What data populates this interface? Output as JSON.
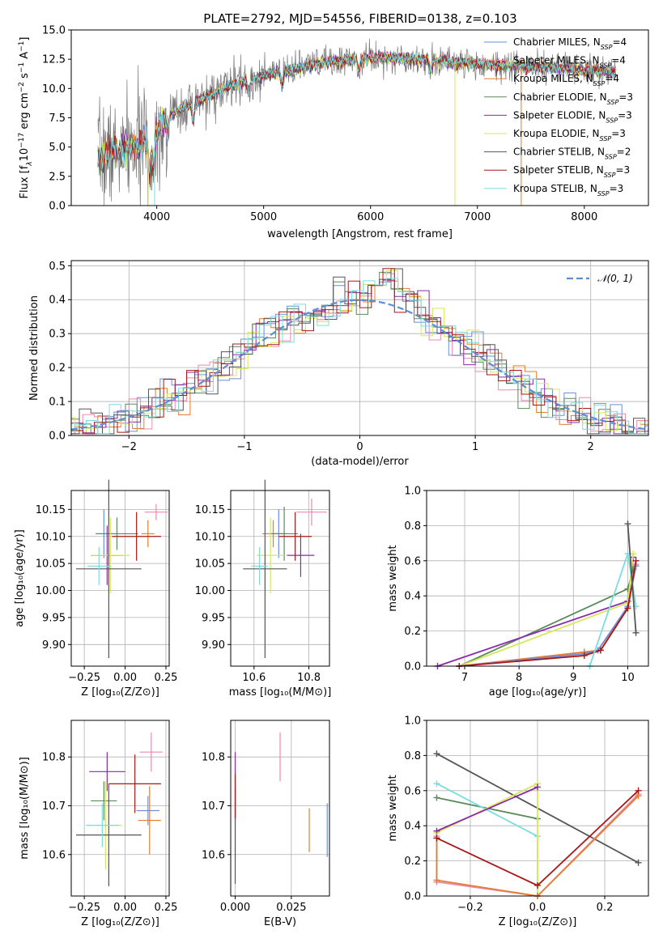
{
  "figure_title": "PLATE=2792, MJD=54556, FIBERID=0138, z=0.103",
  "colors": {
    "chabrier_miles": "#6a8fd8",
    "salpeter_miles": "#e88aaf",
    "kroupa_miles": "#e47d2e",
    "chabrier_elodie": "#5a8a5a",
    "salpeter_elodie": "#8a2aa8",
    "kroupa_elodie": "#d6e85a",
    "chabrier_stelib": "#555555",
    "salpeter_stelib": "#a81818",
    "kroupa_stelib": "#7adce0",
    "gaussian": "#5b8ed6"
  },
  "chart_data": [
    {
      "id": "spectrum",
      "type": "line",
      "xlabel": "wavelength [Angstrom, rest frame]",
      "ylabel_parts": [
        "Flux [f",
        "λ",
        "10",
        "−17",
        " erg cm",
        "−2",
        " s",
        "−1",
        " A",
        "−1",
        "]"
      ],
      "xlim": [
        3200,
        8600
      ],
      "ylim": [
        0,
        15
      ],
      "xticks": [
        4000,
        5000,
        6000,
        7000,
        8000
      ],
      "yticks": [
        0.0,
        2.5,
        5.0,
        7.5,
        10.0,
        12.5,
        15.0
      ],
      "ytick_labels": [
        "0.0",
        "2.5",
        "5.0",
        "7.5",
        "10.0",
        "12.5",
        "15.0"
      ],
      "grid": false,
      "legend_position": "upper-right",
      "data_x_range": [
        3450,
        8300
      ],
      "continuum_nodes": [
        [
          3450,
          4.2
        ],
        [
          3600,
          4.6
        ],
        [
          3800,
          5.0
        ],
        [
          3950,
          5.8
        ],
        [
          4100,
          7.6
        ],
        [
          4300,
          8.6
        ],
        [
          4500,
          9.4
        ],
        [
          4800,
          10.6
        ],
        [
          5000,
          11.1
        ],
        [
          5200,
          11.5
        ],
        [
          5500,
          12.1
        ],
        [
          5800,
          12.5
        ],
        [
          6100,
          12.7
        ],
        [
          6400,
          12.5
        ],
        [
          6700,
          12.3
        ],
        [
          7000,
          12.1
        ],
        [
          7400,
          11.9
        ],
        [
          7800,
          11.7
        ],
        [
          8300,
          11.3
        ]
      ],
      "series": [
        {
          "name": "Chabrier MILES",
          "n_ssp": 4,
          "color_key": "chabrier_miles"
        },
        {
          "name": "Salpeter MILES",
          "n_ssp": 4,
          "color_key": "salpeter_miles"
        },
        {
          "name": "Kroupa MILES",
          "n_ssp": 4,
          "color_key": "kroupa_miles"
        },
        {
          "name": "Chabrier ELODIE",
          "n_ssp": 3,
          "color_key": "chabrier_elodie"
        },
        {
          "name": "Salpeter ELODIE",
          "n_ssp": 3,
          "color_key": "salpeter_elodie"
        },
        {
          "name": "Kroupa ELODIE",
          "n_ssp": 3,
          "color_key": "kroupa_elodie"
        },
        {
          "name": "Chabrier STELIB",
          "n_ssp": 2,
          "color_key": "chabrier_stelib"
        },
        {
          "name": "Salpeter STELIB",
          "n_ssp": 3,
          "color_key": "salpeter_stelib"
        },
        {
          "name": "Kroupa STELIB",
          "n_ssp": 3,
          "color_key": "kroupa_stelib"
        }
      ],
      "drops_to_zero": [
        {
          "x": 3920,
          "color_key": "kroupa_elodie"
        },
        {
          "x": 6790,
          "color_key": "kroupa_elodie"
        },
        {
          "x": 7410,
          "color_key": "kroupa_miles"
        },
        {
          "x": 3980,
          "color_key": "kroupa_stelib"
        }
      ]
    },
    {
      "id": "residual_hist",
      "type": "line",
      "xlabel": "(data-model)/error",
      "ylabel": "Normed distribution",
      "xlim": [
        -2.5,
        2.5
      ],
      "ylim": [
        0,
        0.515
      ],
      "xticks": [
        -2,
        -1,
        0,
        1,
        2
      ],
      "xtick_labels": [
        "−2",
        "−1",
        "0",
        "1",
        "2"
      ],
      "yticks": [
        0.0,
        0.1,
        0.2,
        0.3,
        0.4,
        0.5
      ],
      "ytick_labels": [
        "0.0",
        "0.1",
        "0.2",
        "0.3",
        "0.4",
        "0.5"
      ],
      "grid": true,
      "legend": "𝒩(0, 1)",
      "legend_position": "upper-right",
      "bin_width": 0.1,
      "histogram_series_count": 9
    },
    {
      "id": "age_vs_Z",
      "type": "scatter",
      "xlabel": "Z [log₁₀(Z/Z⊙)]",
      "ylabel": "age  [log₁₀(age/yr)]",
      "xlim": [
        -0.33,
        0.27
      ],
      "ylim": [
        9.86,
        10.185
      ],
      "xticks": [
        -0.25,
        0.0,
        0.25
      ],
      "xtick_labels": [
        "−0.25",
        "0.00",
        "0.25"
      ],
      "yticks": [
        9.9,
        9.95,
        10.0,
        10.05,
        10.1,
        10.15
      ],
      "ytick_labels": [
        "9.90",
        "9.95",
        "10.00",
        "10.05",
        "10.10",
        "10.15"
      ],
      "grid": true,
      "points": [
        {
          "x": -0.13,
          "xerr": 0.05,
          "y": 10.105,
          "yerr": 0.045,
          "color_key": "chabrier_miles"
        },
        {
          "x": 0.19,
          "xerr": 0.07,
          "y": 10.145,
          "yerr": 0.015,
          "color_key": "salpeter_miles"
        },
        {
          "x": 0.14,
          "xerr": 0.04,
          "y": 10.105,
          "yerr": 0.025,
          "color_key": "kroupa_miles"
        },
        {
          "x": -0.05,
          "xerr": 0.13,
          "y": 10.105,
          "yerr": 0.03,
          "color_key": "chabrier_elodie"
        },
        {
          "x": -0.11,
          "xerr": 0.1,
          "y": 10.065,
          "yerr": 0.055,
          "color_key": "salpeter_elodie"
        },
        {
          "x": -0.09,
          "xerr": 0.12,
          "y": 10.065,
          "yerr": 0.07,
          "color_key": "kroupa_elodie"
        },
        {
          "x": -0.1,
          "xerr": 0.2,
          "y": 10.04,
          "yerr": 0.165,
          "color_key": "chabrier_stelib"
        },
        {
          "x": 0.07,
          "xerr": 0.15,
          "y": 10.1,
          "yerr": 0.045,
          "color_key": "salpeter_stelib"
        },
        {
          "x": -0.16,
          "xerr": 0.07,
          "y": 10.045,
          "yerr": 0.035,
          "color_key": "kroupa_stelib"
        }
      ]
    },
    {
      "id": "age_vs_mass",
      "type": "scatter",
      "xlabel": "mass [log₁₀(M/M⊙)]",
      "ylabel": "",
      "xlim": [
        10.515,
        10.875
      ],
      "ylim": [
        9.86,
        10.185
      ],
      "xticks": [
        10.6,
        10.8
      ],
      "xtick_labels": [
        "10.6",
        "10.8"
      ],
      "yticks": [
        9.9,
        9.95,
        10.0,
        10.05,
        10.1,
        10.15
      ],
      "ytick_labels": [
        "9.90",
        "9.95",
        "10.00",
        "10.05",
        "10.10",
        "10.15"
      ],
      "grid": true,
      "points": [
        {
          "x": 10.69,
          "xerr": 0.03,
          "y": 10.105,
          "yerr": 0.045,
          "color_key": "chabrier_miles"
        },
        {
          "x": 10.81,
          "xerr": 0.055,
          "y": 10.145,
          "yerr": 0.025,
          "color_key": "salpeter_miles"
        },
        {
          "x": 10.67,
          "xerr": 0.04,
          "y": 10.105,
          "yerr": 0.025,
          "color_key": "kroupa_miles"
        },
        {
          "x": 10.71,
          "xerr": 0.05,
          "y": 10.105,
          "yerr": 0.05,
          "color_key": "chabrier_elodie"
        },
        {
          "x": 10.77,
          "xerr": 0.05,
          "y": 10.065,
          "yerr": 0.04,
          "color_key": "salpeter_elodie"
        },
        {
          "x": 10.66,
          "xerr": 0.05,
          "y": 10.065,
          "yerr": 0.07,
          "color_key": "kroupa_elodie"
        },
        {
          "x": 10.64,
          "xerr": 0.08,
          "y": 10.04,
          "yerr": 0.165,
          "color_key": "chabrier_stelib"
        },
        {
          "x": 10.75,
          "xerr": 0.06,
          "y": 10.1,
          "yerr": 0.045,
          "color_key": "salpeter_stelib"
        },
        {
          "x": 10.62,
          "xerr": 0.03,
          "y": 10.045,
          "yerr": 0.035,
          "color_key": "kroupa_stelib"
        }
      ]
    },
    {
      "id": "weight_vs_age",
      "type": "line",
      "xlabel": "age  [log₁₀(age/yr)]",
      "ylabel": "mass weight",
      "xlim": [
        6.3,
        10.38
      ],
      "ylim": [
        0,
        1
      ],
      "xticks": [
        7,
        8,
        9,
        10
      ],
      "xtick_labels": [
        "7",
        "8",
        "9",
        "10"
      ],
      "yticks": [
        0.0,
        0.2,
        0.4,
        0.6,
        0.8,
        1.0
      ],
      "ytick_labels": [
        "0.0",
        "0.2",
        "0.4",
        "0.6",
        "0.8",
        "1.0"
      ],
      "grid": true,
      "series": [
        {
          "color_key": "chabrier_elodie",
          "points": [
            [
              6.9,
              0.0
            ],
            [
              10.0,
              0.44
            ],
            [
              10.1,
              0.55
            ]
          ]
        },
        {
          "color_key": "salpeter_elodie",
          "points": [
            [
              6.5,
              0.0
            ],
            [
              10.0,
              0.37
            ],
            [
              10.1,
              0.62
            ]
          ]
        },
        {
          "color_key": "kroupa_elodie",
          "points": [
            [
              6.9,
              0.0
            ],
            [
              10.0,
              0.36
            ],
            [
              10.1,
              0.64
            ]
          ]
        },
        {
          "color_key": "salpeter_miles",
          "points": [
            [
              6.9,
              0.0
            ],
            [
              9.2,
              0.08
            ],
            [
              9.5,
              0.09
            ],
            [
              10.0,
              0.33
            ],
            [
              10.15,
              0.58
            ]
          ]
        },
        {
          "color_key": "kroupa_miles",
          "points": [
            [
              6.9,
              0.0
            ],
            [
              9.2,
              0.08
            ],
            [
              9.45,
              0.09
            ],
            [
              10.0,
              0.33
            ],
            [
              10.15,
              0.57
            ]
          ]
        },
        {
          "color_key": "chabrier_miles",
          "points": [
            [
              6.9,
              0.0
            ],
            [
              9.2,
              0.07
            ],
            [
              9.45,
              0.09
            ],
            [
              10.0,
              0.34
            ],
            [
              10.15,
              0.57
            ]
          ]
        },
        {
          "color_key": "salpeter_stelib",
          "points": [
            [
              6.9,
              0.0
            ],
            [
              9.2,
              0.06
            ],
            [
              9.5,
              0.09
            ],
            [
              10.0,
              0.33
            ],
            [
              10.15,
              0.6
            ]
          ]
        },
        {
          "color_key": "kroupa_stelib",
          "points": [
            [
              9.3,
              0.0
            ],
            [
              10.0,
              0.64
            ],
            [
              10.15,
              0.34
            ]
          ]
        },
        {
          "color_key": "chabrier_stelib",
          "points": [
            [
              10.0,
              0.81
            ],
            [
              10.15,
              0.19
            ]
          ]
        }
      ]
    },
    {
      "id": "mass_vs_Z",
      "type": "scatter",
      "xlabel": "Z [log₁₀(Z/Z⊙)]",
      "ylabel": "mass [log₁₀(M/M⊙)]",
      "xlim": [
        -0.33,
        0.27
      ],
      "ylim": [
        10.515,
        10.875
      ],
      "xticks": [
        -0.25,
        0.0,
        0.25
      ],
      "xtick_labels": [
        "−0.25",
        "0.00",
        "0.25"
      ],
      "yticks": [
        10.6,
        10.7,
        10.8
      ],
      "ytick_labels": [
        "10.6",
        "10.7",
        "10.8"
      ],
      "grid": true,
      "points": [
        {
          "x": 0.14,
          "xerr": 0.07,
          "y": 10.69,
          "yerr": 0.03,
          "color_key": "chabrier_miles"
        },
        {
          "x": 0.16,
          "xerr": 0.07,
          "y": 10.81,
          "yerr": 0.04,
          "color_key": "salpeter_miles"
        },
        {
          "x": 0.15,
          "xerr": 0.07,
          "y": 10.67,
          "yerr": 0.07,
          "color_key": "kroupa_miles"
        },
        {
          "x": -0.13,
          "xerr": 0.08,
          "y": 10.71,
          "yerr": 0.04,
          "color_key": "chabrier_elodie"
        },
        {
          "x": -0.11,
          "xerr": 0.11,
          "y": 10.77,
          "yerr": 0.04,
          "color_key": "salpeter_elodie"
        },
        {
          "x": -0.12,
          "xerr": 0.1,
          "y": 10.66,
          "yerr": 0.09,
          "color_key": "kroupa_elodie"
        },
        {
          "x": -0.1,
          "xerr": 0.2,
          "y": 10.64,
          "yerr": 0.105,
          "color_key": "chabrier_stelib"
        },
        {
          "x": 0.06,
          "xerr": 0.16,
          "y": 10.745,
          "yerr": 0.06,
          "color_key": "salpeter_stelib"
        },
        {
          "x": -0.14,
          "xerr": 0.1,
          "y": 10.66,
          "yerr": 0.045,
          "color_key": "kroupa_stelib"
        }
      ]
    },
    {
      "id": "mass_vs_ebv",
      "type": "scatter",
      "xlabel": "E(B-V)",
      "ylabel": "",
      "xlim": [
        -0.002,
        0.042
      ],
      "ylim": [
        10.515,
        10.875
      ],
      "xticks": [
        0.0,
        0.025
      ],
      "xtick_labels": [
        "0.000",
        "0.025"
      ],
      "yticks": [
        10.6,
        10.7,
        10.8
      ],
      "ytick_labels": [
        "10.6",
        "10.7",
        "10.8"
      ],
      "grid": true,
      "points": [
        {
          "x": 0.0,
          "y": 10.685,
          "yerr": 0.1,
          "color_key": "kroupa_stelib"
        },
        {
          "x": 0.0,
          "y": 10.74,
          "yerr": 0.07,
          "color_key": "salpeter_elodie"
        },
        {
          "x": 0.0,
          "y": 10.64,
          "yerr": 0.1,
          "color_key": "chabrier_stelib"
        },
        {
          "x": 0.0,
          "y": 10.72,
          "yerr": 0.045,
          "color_key": "salpeter_stelib"
        },
        {
          "x": 0.02,
          "y": 10.8,
          "yerr": 0.05,
          "color_key": "salpeter_miles"
        },
        {
          "x": 0.033,
          "y": 10.65,
          "yerr": 0.045,
          "color_key": "kroupa_miles"
        },
        {
          "x": 0.041,
          "y": 10.65,
          "yerr": 0.055,
          "color_key": "chabrier_miles"
        }
      ]
    },
    {
      "id": "weight_vs_Z",
      "type": "line",
      "xlabel": "Z [log₁₀(Z/Z⊙)]",
      "ylabel": "mass weight",
      "xlim": [
        -0.33,
        0.33
      ],
      "ylim": [
        0,
        1
      ],
      "xticks": [
        -0.2,
        0.0,
        0.2
      ],
      "xtick_labels": [
        "−0.2",
        "0.0",
        "0.2"
      ],
      "yticks": [
        0.0,
        0.2,
        0.4,
        0.6,
        0.8,
        1.0
      ],
      "ytick_labels": [
        "0.0",
        "0.2",
        "0.4",
        "0.6",
        "0.8",
        "1.0"
      ],
      "grid": true,
      "series": [
        {
          "color_key": "chabrier_stelib",
          "points": [
            [
              -0.3,
              0.81
            ],
            [
              0.3,
              0.19
            ]
          ]
        },
        {
          "color_key": "chabrier_elodie",
          "points": [
            [
              -0.3,
              0.56
            ],
            [
              0.0,
              0.44
            ]
          ]
        },
        {
          "color_key": "kroupa_stelib",
          "points": [
            [
              -0.3,
              0.64
            ],
            [
              0.0,
              0.34
            ],
            [
              0.0,
              0.0
            ]
          ]
        },
        {
          "color_key": "kroupa_elodie",
          "points": [
            [
              -0.3,
              0.36
            ],
            [
              0.0,
              0.64
            ],
            [
              0.0,
              0.0
            ]
          ]
        },
        {
          "color_key": "salpeter_elodie",
          "points": [
            [
              -0.3,
              0.37
            ],
            [
              0.0,
              0.62
            ]
          ]
        },
        {
          "color_key": "salpeter_miles",
          "points": [
            [
              -0.3,
              0.34
            ],
            [
              -0.3,
              0.08
            ],
            [
              0.0,
              0.0
            ],
            [
              0.3,
              0.58
            ]
          ]
        },
        {
          "color_key": "kroupa_miles",
          "points": [
            [
              -0.3,
              0.33
            ],
            [
              -0.3,
              0.09
            ],
            [
              0.0,
              0.0
            ],
            [
              0.3,
              0.57
            ]
          ]
        },
        {
          "color_key": "salpeter_stelib",
          "points": [
            [
              -0.3,
              0.33
            ],
            [
              0.0,
              0.06
            ],
            [
              0.3,
              0.6
            ]
          ]
        }
      ]
    }
  ]
}
